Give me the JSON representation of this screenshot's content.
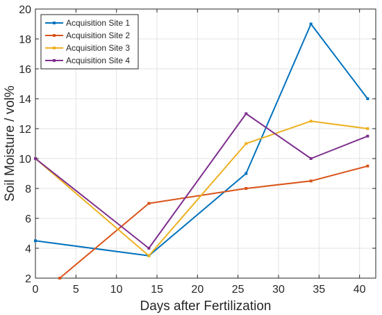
{
  "chart_data": {
    "type": "line",
    "title": "",
    "xlabel": "Days after Fertilization",
    "ylabel": "Soil Moisture / vol%",
    "xlim": [
      0,
      42
    ],
    "ylim": [
      2,
      20
    ],
    "xticks": [
      0,
      5,
      10,
      15,
      20,
      25,
      30,
      35,
      40
    ],
    "yticks": [
      2,
      4,
      6,
      8,
      10,
      12,
      14,
      16,
      18,
      20
    ],
    "grid": true,
    "legend_position": "top-left",
    "series": [
      {
        "name": "Acquisition Site 1",
        "color": "#0072BD",
        "x": [
          0,
          14,
          26,
          34,
          41
        ],
        "y": [
          4.5,
          3.5,
          9,
          19,
          14
        ]
      },
      {
        "name": "Acquisition Site 2",
        "color": "#D95319",
        "x": [
          3,
          14,
          26,
          34,
          41
        ],
        "y": [
          2,
          7,
          8,
          8.5,
          9.5
        ]
      },
      {
        "name": "Acquisition Site 3",
        "color": "#EDB120",
        "x": [
          0,
          14,
          26,
          34,
          41
        ],
        "y": [
          10,
          3.5,
          11,
          12.5,
          12
        ]
      },
      {
        "name": "Acquisition Site 4",
        "color": "#7E2F8E",
        "x": [
          0,
          14,
          26,
          34,
          41
        ],
        "y": [
          10,
          4,
          13,
          10,
          11.5
        ]
      }
    ]
  }
}
